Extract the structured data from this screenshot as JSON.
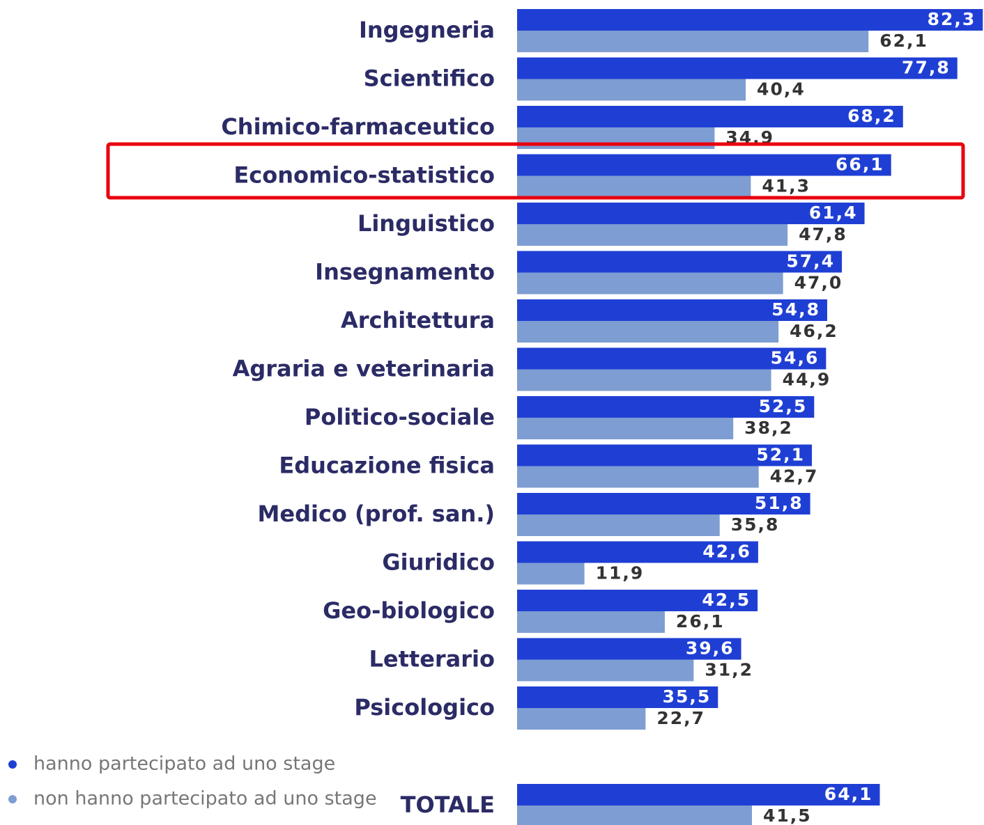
{
  "chart_data": {
    "type": "bar",
    "orientation": "horizontal",
    "categories": [
      "Ingegneria",
      "Scientifico",
      "Chimico-farmaceutico",
      "Economico-statistico",
      "Linguistico",
      "Insegnamento",
      "Architettura",
      "Agraria e veterinaria",
      "Politico-sociale",
      "Educazione fisica",
      "Medico (prof. san.)",
      "Giuridico",
      "Geo-biologico",
      "Letterario",
      "Psicologico",
      "TOTALE"
    ],
    "series": [
      {
        "name": "hanno partecipato ad uno stage",
        "color": "#1f3fd4",
        "values": [
          82.3,
          77.8,
          68.2,
          66.1,
          61.4,
          57.4,
          54.8,
          54.6,
          52.5,
          52.1,
          51.8,
          42.6,
          42.5,
          39.6,
          35.5,
          64.1
        ],
        "value_labels": [
          "82,3",
          "77,8",
          "68,2",
          "66,1",
          "61,4",
          "57,4",
          "54,8",
          "54,6",
          "52,5",
          "52,1",
          "51,8",
          "42,6",
          "42,5",
          "39,6",
          "35,5",
          "64,1"
        ]
      },
      {
        "name": "non hanno partecipato ad uno stage",
        "color": "#7e9dd2",
        "values": [
          62.1,
          40.4,
          34.9,
          41.3,
          47.8,
          47.0,
          46.2,
          44.9,
          38.2,
          42.7,
          35.8,
          11.9,
          26.1,
          31.2,
          22.7,
          41.5
        ],
        "value_labels": [
          "62,1",
          "40,4",
          "34,9",
          "41,3",
          "47,8",
          "47,0",
          "46,2",
          "44,9",
          "38,2",
          "42,7",
          "35,8",
          "11,9",
          "26,1",
          "31,2",
          "22,7",
          "41,5"
        ]
      }
    ],
    "legend": "bottom-left"
  }
}
